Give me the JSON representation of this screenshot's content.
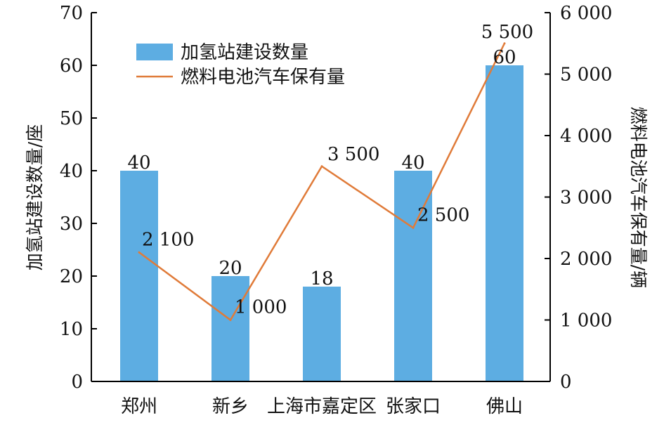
{
  "chart_data": {
    "type": "bar",
    "categories": [
      "郑州",
      "新乡",
      "上海市嘉定区",
      "张家口",
      "佛山"
    ],
    "series": [
      {
        "name": "加氢站建设数量",
        "type": "bar",
        "axis": "left",
        "values": [
          40,
          20,
          18,
          40,
          60
        ],
        "labels": [
          "40",
          "20",
          "18",
          "40",
          "60"
        ],
        "color": "#5DADE2"
      },
      {
        "name": "燃料电池汽车保有量",
        "type": "line",
        "axis": "right",
        "values": [
          2100,
          1000,
          3500,
          2500,
          5500
        ],
        "labels": [
          "2 100",
          "1 000",
          "3 500",
          "2 500",
          "5 500"
        ],
        "color": "#E07B39"
      }
    ],
    "ylabel": "加氢站建设数量/座",
    "ylabel_right": "燃料电池汽车保有量/辆",
    "ylim": [
      0,
      70
    ],
    "ylim_right": [
      0,
      6000
    ],
    "yticks": [
      0,
      10,
      20,
      30,
      40,
      50,
      60,
      70
    ],
    "yticks_right": [
      "0",
      "1 000",
      "2 000",
      "3 000",
      "4 000",
      "5 000",
      "6 000"
    ],
    "legend_position": "top-left",
    "grid": false
  }
}
